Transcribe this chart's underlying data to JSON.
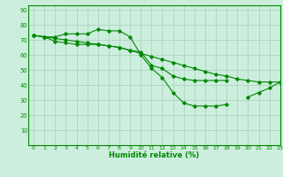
{
  "title": "",
  "xlabel": "Humidité relative (%)",
  "ylabel": "",
  "bg_color": "#cceedd",
  "grid_color": "#aaccbb",
  "line_color": "#008800",
  "xlim": [
    -0.5,
    23
  ],
  "ylim": [
    0,
    93
  ],
  "xticks": [
    0,
    1,
    2,
    3,
    4,
    5,
    6,
    7,
    8,
    9,
    10,
    11,
    12,
    13,
    14,
    15,
    16,
    17,
    18,
    19,
    20,
    21,
    22,
    23
  ],
  "yticks": [
    10,
    20,
    30,
    40,
    50,
    60,
    70,
    80,
    90
  ],
  "line1_x": [
    0,
    1,
    2,
    3,
    4,
    5,
    6,
    7,
    8,
    9,
    10,
    11,
    12,
    13,
    14,
    15,
    16,
    17,
    18,
    19,
    20,
    21,
    22,
    23
  ],
  "line1_y": [
    73,
    72,
    72,
    74,
    74,
    74,
    77,
    76,
    76,
    72,
    60,
    51,
    45,
    35,
    28,
    26,
    26,
    26,
    27,
    null,
    32,
    35,
    38,
    42
  ],
  "line2_x": [
    0,
    1,
    2,
    3,
    4,
    5,
    6,
    7,
    8,
    9,
    10,
    11,
    12,
    13,
    14,
    15,
    16,
    17,
    18,
    19,
    20,
    21,
    22,
    23
  ],
  "line2_y": [
    73,
    72,
    69,
    68,
    67,
    67,
    67,
    66,
    65,
    63,
    62,
    53,
    51,
    46,
    44,
    43,
    43,
    43,
    43,
    null,
    null,
    null,
    null,
    null
  ],
  "line3_x": [
    0,
    1,
    2,
    3,
    4,
    5,
    6,
    7,
    8,
    9,
    10,
    11,
    12,
    13,
    14,
    15,
    16,
    17,
    18,
    19,
    20,
    21,
    22,
    23
  ],
  "line3_y": [
    73,
    72,
    71,
    70,
    69,
    68,
    67,
    66,
    65,
    63,
    61,
    59,
    57,
    55,
    53,
    51,
    49,
    47,
    46,
    44,
    43,
    42,
    42,
    42
  ]
}
